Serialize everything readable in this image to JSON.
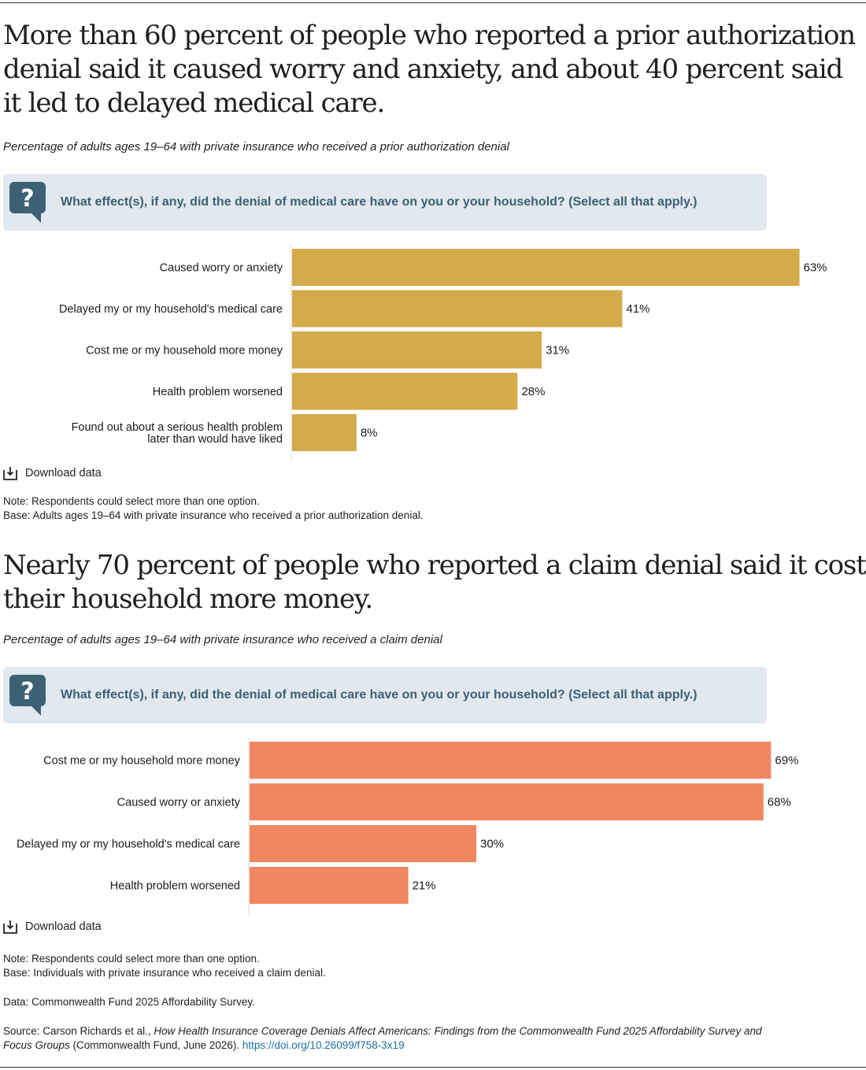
{
  "section1": {
    "headline": "More than 60 percent of people who reported a prior authorization denial said it caused worry and anxiety, and about 40 percent said it led to delayed medical care.",
    "subtitle": "Percentage of adults ages 19–64 with private insurance who received a prior authorization denial",
    "question": "What effect(s), if any, did the denial of medical care have on you or your household? (Select all that apply.)",
    "download_label": "Download data",
    "note": "Note: Respondents could select more than one option.",
    "base": "Base: Adults ages 19–64 with private insurance who received a prior authorization denial."
  },
  "section2": {
    "headline": "Nearly 70 percent of people who reported a claim denial said it cost their household more money.",
    "subtitle": "Percentage of adults ages 19–64 with private insurance who received a claim denial",
    "question": "What effect(s), if any, did the denial of medical care have on you or your household? (Select all that apply.)",
    "download_label": "Download data",
    "note": "Note: Respondents could select more than one option.",
    "base": "Base: Individuals with private insurance who received a claim denial."
  },
  "footer": {
    "data_line": "Data: Commonwealth Fund 2025 Affordability Survey.",
    "source_prefix": "Source: Carson Richards et al., ",
    "source_title": "How Health Insurance Coverage Denials Affect Americans: Findings from the Commonwealth Fund 2025 Affordability Survey and Focus Groups",
    "source_suffix": " (Commonwealth Fund, June 2026). ",
    "source_link": "https://doi.org/10.26099/f758-3x19"
  },
  "chart_data": [
    {
      "type": "bar",
      "orientation": "horizontal",
      "color": "#d4aa4a",
      "categories": [
        "Caused worry or anxiety",
        "Delayed my or my household's medical care",
        "Cost me or my household more money",
        "Health problem worsened",
        "Found out about a serious health problem later than would have liked"
      ],
      "values": [
        63,
        41,
        31,
        28,
        8
      ],
      "value_labels": [
        "63%",
        "41%",
        "31%",
        "28%",
        "8%"
      ],
      "xlim": [
        0,
        100
      ]
    },
    {
      "type": "bar",
      "orientation": "horizontal",
      "color": "#f08762",
      "categories": [
        "Cost me or my household more money",
        "Caused worry or anxiety",
        "Delayed my or my household's medical care",
        "Health problem worsened"
      ],
      "values": [
        69,
        68,
        30,
        21
      ],
      "value_labels": [
        "69%",
        "68%",
        "30%",
        "21%"
      ],
      "xlim": [
        0,
        100
      ]
    }
  ]
}
